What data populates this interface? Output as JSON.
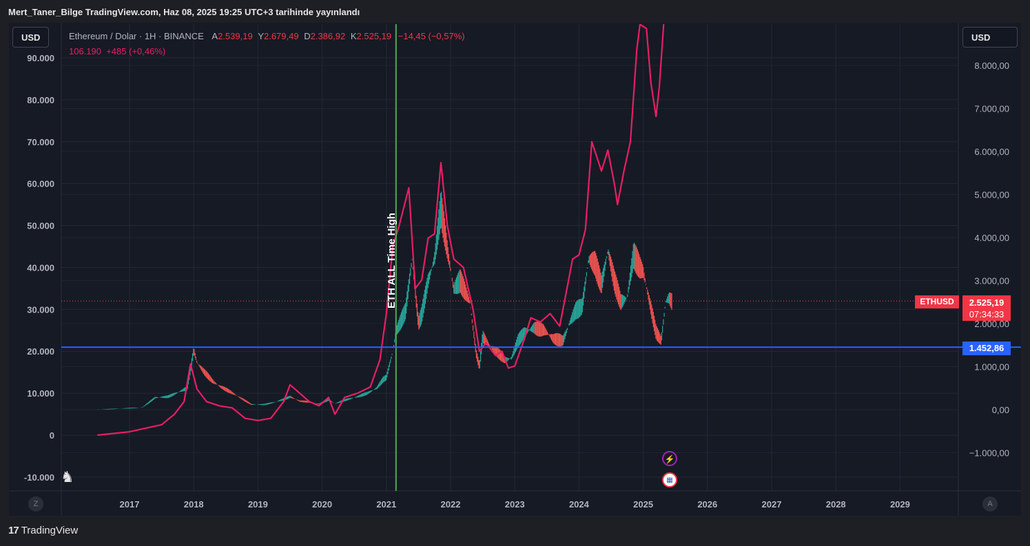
{
  "header": {
    "published_text": "Mert_Taner_Bilge TradingView.com, Haz 08, 2025 19:25 UTC+3 tarihinde yayınlandı"
  },
  "legend": {
    "symbol_text": "Ethereum / Dolar · 1H · BINANCE",
    "open_label": "A",
    "open_value": "2.539,19",
    "high_label": "Y",
    "high_value": "2.679,49",
    "low_label": "D",
    "low_value": "2.386,92",
    "close_label": "K",
    "close_value": "2.525,19",
    "change_value": "−14,45 (−0,57%)",
    "overlay_text": "106.190  +485 (+0,46%)"
  },
  "currency": {
    "left": "USD",
    "right": "USD"
  },
  "price_tags": {
    "symbol": "ETHUSD",
    "last_price": "2.525,19",
    "countdown": "07:34:33",
    "hline_price": "1.452,86"
  },
  "corner": {
    "left": "Z",
    "right": "A"
  },
  "footer": {
    "logo_mark": "17",
    "logo_text": "TradingView"
  },
  "colors": {
    "eth_up": "#26a69a",
    "eth_down": "#ef5350",
    "overlay": "#e91e63",
    "hline": "#2962ff",
    "vline": "#4caf50",
    "tag_red": "#f23645"
  },
  "chart_data": [
    {
      "type": "line",
      "title": "Ethereum / Dolar · 1H · BINANCE",
      "ylabel": "",
      "xlabel": "",
      "x_ticks": [
        "2017",
        "2018",
        "2019",
        "2020",
        "2021",
        "2022",
        "2023",
        "2024",
        "2025",
        "2026",
        "2027",
        "2028",
        "2029"
      ],
      "left_axis": {
        "ticks": [
          "90.000",
          "80.000",
          "70.000",
          "60.000",
          "50.000",
          "40.000",
          "30.000",
          "20.000",
          "10.000",
          "0",
          "-10.000"
        ],
        "values": [
          90000,
          80000,
          70000,
          60000,
          50000,
          40000,
          30000,
          20000,
          10000,
          0,
          -10000
        ]
      },
      "right_axis": {
        "ticks": [
          "8.000,00",
          "7.000,00",
          "6.000,00",
          "5.000,00",
          "4.000,00",
          "3.000,00",
          "2.000,00",
          "1.000,00",
          "0,00",
          "−1.000,00"
        ],
        "values": [
          8000,
          7000,
          6000,
          5000,
          4000,
          3000,
          2000,
          1000,
          0,
          -1000
        ]
      },
      "grid": true,
      "series": [
        {
          "name": "Ethereum / Dolar",
          "axis": "right",
          "points": [
            [
              2016.5,
              0
            ],
            [
              2017.2,
              50
            ],
            [
              2017.4,
              280
            ],
            [
              2017.6,
              300
            ],
            [
              2017.9,
              500
            ],
            [
              2018.0,
              1380
            ],
            [
              2018.05,
              1100
            ],
            [
              2018.15,
              900
            ],
            [
              2018.3,
              650
            ],
            [
              2018.4,
              550
            ],
            [
              2018.55,
              430
            ],
            [
              2018.7,
              300
            ],
            [
              2018.9,
              120
            ],
            [
              2019.1,
              120
            ],
            [
              2019.25,
              170
            ],
            [
              2019.4,
              240
            ],
            [
              2019.5,
              300
            ],
            [
              2019.65,
              200
            ],
            [
              2019.8,
              180
            ],
            [
              2019.95,
              130
            ],
            [
              2020.1,
              230
            ],
            [
              2020.2,
              140
            ],
            [
              2020.35,
              220
            ],
            [
              2020.55,
              300
            ],
            [
              2020.7,
              380
            ],
            [
              2020.85,
              500
            ],
            [
              2020.95,
              700
            ],
            [
              2021.0,
              750
            ],
            [
              2021.1,
              1350
            ],
            [
              2021.15,
              1800
            ],
            [
              2021.3,
              2300
            ],
            [
              2021.4,
              3500
            ],
            [
              2021.5,
              2000
            ],
            [
              2021.55,
              2200
            ],
            [
              2021.65,
              3000
            ],
            [
              2021.75,
              3500
            ],
            [
              2021.85,
              4700
            ],
            [
              2021.95,
              3700
            ],
            [
              2022.05,
              2800
            ],
            [
              2022.15,
              3000
            ],
            [
              2022.3,
              2500
            ],
            [
              2022.4,
              1300
            ],
            [
              2022.45,
              1000
            ],
            [
              2022.5,
              1700
            ],
            [
              2022.6,
              1500
            ],
            [
              2022.75,
              1300
            ],
            [
              2022.85,
              1150
            ],
            [
              2022.95,
              1200
            ],
            [
              2023.05,
              1600
            ],
            [
              2023.15,
              1800
            ],
            [
              2023.3,
              1900
            ],
            [
              2023.45,
              1850
            ],
            [
              2023.6,
              1650
            ],
            [
              2023.75,
              1600
            ],
            [
              2023.85,
              2000
            ],
            [
              2023.95,
              2300
            ],
            [
              2024.05,
              2400
            ],
            [
              2024.15,
              3500
            ],
            [
              2024.25,
              3400
            ],
            [
              2024.35,
              2900
            ],
            [
              2024.45,
              3700
            ],
            [
              2024.55,
              3000
            ],
            [
              2024.65,
              2500
            ],
            [
              2024.75,
              2600
            ],
            [
              2024.85,
              3600
            ],
            [
              2024.95,
              3300
            ],
            [
              2025.0,
              3200
            ],
            [
              2025.1,
              2500
            ],
            [
              2025.2,
              1800
            ],
            [
              2025.28,
              1600
            ],
            [
              2025.35,
              2500
            ],
            [
              2025.4,
              2600
            ],
            [
              2025.45,
              2500
            ]
          ]
        },
        {
          "name": "106.190",
          "axis": "left",
          "points": [
            [
              2016.5,
              0
            ],
            [
              2017.0,
              800
            ],
            [
              2017.5,
              2500
            ],
            [
              2017.7,
              5000
            ],
            [
              2017.85,
              8000
            ],
            [
              2017.95,
              17000
            ],
            [
              2018.05,
              11000
            ],
            [
              2018.2,
              8000
            ],
            [
              2018.4,
              7000
            ],
            [
              2018.6,
              6500
            ],
            [
              2018.8,
              4000
            ],
            [
              2019.0,
              3500
            ],
            [
              2019.2,
              4000
            ],
            [
              2019.4,
              8000
            ],
            [
              2019.5,
              12000
            ],
            [
              2019.65,
              10000
            ],
            [
              2019.8,
              8000
            ],
            [
              2019.95,
              7000
            ],
            [
              2020.1,
              9000
            ],
            [
              2020.2,
              5000
            ],
            [
              2020.35,
              9000
            ],
            [
              2020.55,
              10000
            ],
            [
              2020.75,
              11500
            ],
            [
              2020.9,
              18000
            ],
            [
              2021.0,
              29000
            ],
            [
              2021.1,
              45000
            ],
            [
              2021.2,
              50000
            ],
            [
              2021.35,
              59000
            ],
            [
              2021.45,
              35000
            ],
            [
              2021.55,
              37000
            ],
            [
              2021.65,
              47000
            ],
            [
              2021.75,
              48000
            ],
            [
              2021.85,
              65000
            ],
            [
              2021.95,
              50000
            ],
            [
              2022.05,
              42000
            ],
            [
              2022.2,
              40000
            ],
            [
              2022.35,
              30000
            ],
            [
              2022.45,
              20000
            ],
            [
              2022.55,
              22000
            ],
            [
              2022.7,
              19000
            ],
            [
              2022.8,
              20000
            ],
            [
              2022.9,
              16000
            ],
            [
              2023.0,
              16500
            ],
            [
              2023.15,
              23000
            ],
            [
              2023.25,
              28000
            ],
            [
              2023.4,
              27000
            ],
            [
              2023.55,
              29000
            ],
            [
              2023.7,
              26000
            ],
            [
              2023.8,
              34000
            ],
            [
              2023.9,
              42000
            ],
            [
              2024.0,
              43000
            ],
            [
              2024.1,
              49000
            ],
            [
              2024.2,
              70000
            ],
            [
              2024.35,
              63000
            ],
            [
              2024.45,
              68000
            ],
            [
              2024.55,
              60000
            ],
            [
              2024.6,
              55000
            ],
            [
              2024.7,
              63000
            ],
            [
              2024.8,
              70000
            ],
            [
              2024.9,
              92000
            ],
            [
              2024.95,
              98000
            ],
            [
              2025.05,
              97000
            ],
            [
              2025.12,
              84000
            ],
            [
              2025.2,
              76000
            ],
            [
              2025.25,
              83000
            ],
            [
              2025.3,
              94000
            ],
            [
              2025.35,
              105000
            ],
            [
              2025.45,
              106190
            ]
          ]
        }
      ],
      "annotations": [
        {
          "kind": "vertical_line",
          "x": 2021.15,
          "text": "ETH ALL Time High"
        },
        {
          "kind": "horizontal_line",
          "y": 1452.86,
          "axis": "right",
          "text": "1.452,86"
        },
        {
          "kind": "last_price_line",
          "y": 2525.19,
          "axis": "right",
          "text": "2.525,19"
        }
      ]
    }
  ]
}
